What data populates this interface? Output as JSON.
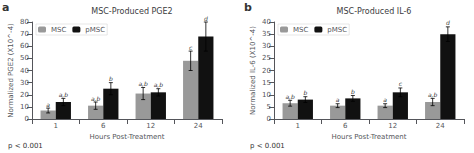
{
  "chart_data": [
    {
      "type": "bar",
      "title": "MSC-Produced PGE2",
      "xlabel": "Hours Post-Treatment",
      "ylabel": "Normalized PGE2 (X10^-4)",
      "categories": [
        "1",
        "6",
        "12",
        "24"
      ],
      "series": [
        {
          "name": "MSC",
          "color": "#999999",
          "values": [
            7,
            11,
            21,
            48
          ],
          "errors": [
            2,
            3,
            5,
            8
          ],
          "labels": [
            "a",
            "a,b",
            "a,b",
            "c"
          ]
        },
        {
          "name": "pMSC",
          "color": "#111111",
          "values": [
            14,
            25,
            22,
            68
          ],
          "errors": [
            3,
            5,
            3,
            12
          ],
          "labels": [
            "a,b",
            "b",
            "a,b",
            "d"
          ]
        }
      ],
      "ylim": [
        0,
        80
      ],
      "yticks": [
        0,
        10,
        20,
        30,
        40,
        50,
        60,
        70,
        80
      ],
      "grid": false,
      "legend": "upper left",
      "panel_label": "a",
      "pval_label": "p < 0.001"
    },
    {
      "type": "bar",
      "title": "MSC-Produced IL-6",
      "xlabel": "Hours Post-Treatment",
      "ylabel": "Normalized IL-6 (X10^-4)",
      "categories": [
        "1",
        "6",
        "12",
        "24"
      ],
      "series": [
        {
          "name": "MSC",
          "color": "#999999",
          "values": [
            6.5,
            5.5,
            5.5,
            7
          ],
          "errors": [
            1.2,
            0.8,
            0.8,
            1.5
          ],
          "labels": [
            "a,b",
            "a",
            "a",
            "a,b"
          ]
        },
        {
          "name": "pMSC",
          "color": "#111111",
          "values": [
            8,
            8.5,
            11,
            35
          ],
          "errors": [
            1.2,
            1.2,
            1.8,
            3
          ],
          "labels": [
            "b",
            "b",
            "c",
            "d"
          ]
        }
      ],
      "ylim": [
        0,
        40
      ],
      "yticks": [
        0,
        5,
        10,
        15,
        20,
        25,
        30,
        35,
        40
      ],
      "grid": false,
      "legend": "upper left",
      "panel_label": "b",
      "pval_label": "p < 0.001"
    }
  ]
}
